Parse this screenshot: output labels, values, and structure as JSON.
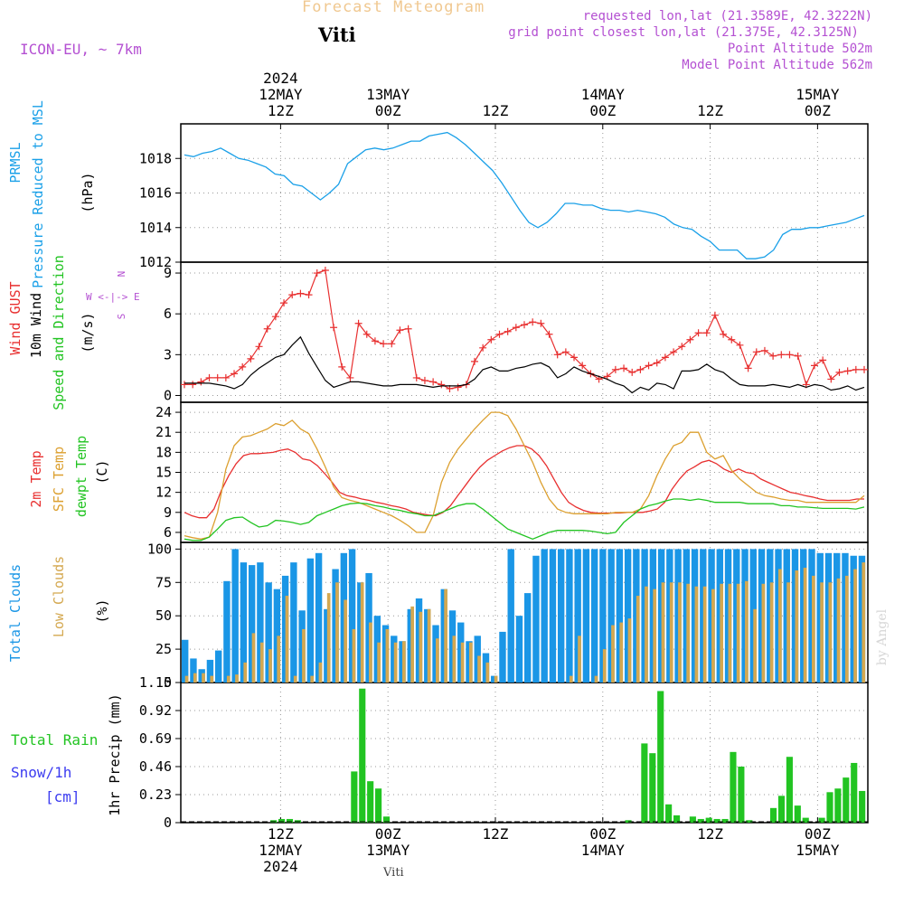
{
  "header": {
    "title": "Forecast Meteogram",
    "location": "Viti",
    "model": "ICON-EU, ~ 7km",
    "requested": "requested lon,lat (21.3589E, 42.3222N)",
    "gridpoint": "grid point closest lon,lat (21.375E, 42.3125N)",
    "point_alt": "Point Altitude 502m",
    "model_alt": "Model Point Altitude 562m",
    "footer": "Viti",
    "watermark": "by Angel"
  },
  "colors": {
    "pressure": "#1aa0e8",
    "gust": "#e83030",
    "wind": "#000000",
    "temp2m": "#e83030",
    "sfctemp": "#dca030",
    "dewpt": "#22c422",
    "total_clouds": "#1a96e6",
    "low_clouds": "#d4a850",
    "precip": "#22c422",
    "label_purple": "#b450d2",
    "label_blue": "#3c3cf0"
  },
  "time_axis": {
    "top_ticks": [
      {
        "h": 12,
        "lines": [
          "2024",
          "12MAY",
          "12Z"
        ]
      },
      {
        "h": 24,
        "lines": [
          "13MAY",
          "00Z"
        ]
      },
      {
        "h": 36,
        "lines": [
          "12Z"
        ]
      },
      {
        "h": 48,
        "lines": [
          "14MAY",
          "00Z"
        ]
      },
      {
        "h": 60,
        "lines": [
          "12Z"
        ]
      },
      {
        "h": 72,
        "lines": [
          "15MAY",
          "00Z"
        ]
      }
    ],
    "bottom_ticks": [
      {
        "h": 12,
        "lines": [
          "12Z",
          "12MAY",
          "2024"
        ]
      },
      {
        "h": 24,
        "lines": [
          "00Z",
          "13MAY"
        ]
      },
      {
        "h": 36,
        "lines": [
          "12Z"
        ]
      },
      {
        "h": 48,
        "lines": [
          "00Z",
          "14MAY"
        ]
      },
      {
        "h": 60,
        "lines": [
          "12Z"
        ]
      },
      {
        "h": 72,
        "lines": [
          "00Z",
          "15MAY"
        ]
      }
    ]
  },
  "panels": {
    "pressure": {
      "labels": [
        "PRMSL",
        "Pressure Reduced to MSL"
      ],
      "unit": "(hPa)"
    },
    "wind": {
      "labels": [
        "Wind GUST",
        "10m Wind",
        "Speed and Direction"
      ],
      "unit": "(m/s)",
      "compass": [
        "N",
        "S",
        "W <-|-> E"
      ]
    },
    "temp": {
      "labels": [
        "2m Temp",
        "SFC Temp",
        "dewpt Temp"
      ],
      "unit": "(C)"
    },
    "clouds": {
      "labels": [
        "Total Clouds",
        "Low Clouds"
      ],
      "unit": "(%)"
    },
    "precip": {
      "labels": [
        "Total Rain",
        "Snow/1h",
        "[cm]"
      ],
      "unit": "1hr Precip (mm)"
    }
  },
  "chart_data": [
    {
      "type": "line",
      "title": "PRMSL Pressure Reduced to MSL",
      "ylabel": "(hPa)",
      "ylim": [
        1012,
        1020
      ],
      "yticks": [
        1012,
        1014,
        1016,
        1018
      ],
      "grid": true,
      "series": [
        {
          "name": "PRMSL",
          "values": [
            1018.2,
            1018.1,
            1018.3,
            1018.4,
            1018.6,
            1018.3,
            1018.0,
            1017.9,
            1017.7,
            1017.5,
            1017.1,
            1017.0,
            1016.5,
            1016.4,
            1016.0,
            1015.6,
            1016.0,
            1016.5,
            1017.7,
            1018.1,
            1018.5,
            1018.6,
            1018.5,
            1018.6,
            1018.8,
            1019.0,
            1019.0,
            1019.3,
            1019.4,
            1019.5,
            1019.2,
            1018.8,
            1018.3,
            1017.8,
            1017.3,
            1016.6,
            1015.8,
            1015.0,
            1014.3,
            1014.0,
            1014.3,
            1014.8,
            1015.4,
            1015.4,
            1015.3,
            1015.3,
            1015.1,
            1015.0,
            1015.0,
            1014.9,
            1015.0,
            1014.9,
            1014.8,
            1014.6,
            1014.2,
            1014.0,
            1013.9,
            1013.5,
            1013.2,
            1012.7,
            1012.7,
            1012.7,
            1012.2,
            1012.2,
            1012.3,
            1012.7,
            1013.6,
            1013.9,
            1013.9,
            1014.0,
            1014.0,
            1014.1,
            1014.2,
            1014.3,
            1014.5,
            1014.7
          ]
        }
      ]
    },
    {
      "type": "line",
      "title": "Wind GUST / 10m Wind Speed and Direction",
      "ylabel": "(m/s)",
      "ylim": [
        -0.5,
        9.8
      ],
      "yticks": [
        0,
        3,
        6,
        9
      ],
      "grid": true,
      "series": [
        {
          "name": "Wind GUST",
          "values": [
            0.8,
            0.8,
            1.0,
            1.3,
            1.3,
            1.3,
            1.6,
            2.1,
            2.7,
            3.6,
            4.9,
            5.8,
            6.8,
            7.4,
            7.5,
            7.4,
            9.0,
            9.2,
            5.0,
            2.1,
            1.3,
            5.3,
            4.5,
            4.0,
            3.8,
            3.8,
            4.8,
            4.9,
            1.3,
            1.1,
            1.0,
            0.8,
            0.5,
            0.6,
            0.8,
            2.5,
            3.5,
            4.1,
            4.5,
            4.7,
            5.0,
            5.2,
            5.4,
            5.3,
            4.5,
            3.0,
            3.2,
            2.8,
            2.2,
            1.6,
            1.2,
            1.4,
            1.9,
            2.0,
            1.7,
            1.9,
            2.2,
            2.4,
            2.8,
            3.2,
            3.6,
            4.1,
            4.6,
            4.6,
            5.9,
            4.5,
            4.1,
            3.7,
            2.0,
            3.2,
            3.3,
            2.9,
            3.0,
            3.0,
            2.9,
            0.8,
            2.2,
            2.6,
            1.2,
            1.7,
            1.8,
            1.9,
            1.9
          ]
        },
        {
          "name": "10m Wind",
          "values": [
            0.9,
            0.9,
            0.9,
            0.9,
            0.8,
            0.7,
            0.5,
            0.8,
            1.5,
            2.0,
            2.4,
            2.8,
            3.0,
            3.7,
            4.3,
            3.1,
            2.1,
            1.1,
            0.6,
            0.8,
            1.0,
            1.0,
            0.9,
            0.8,
            0.7,
            0.7,
            0.8,
            0.8,
            0.8,
            0.7,
            0.6,
            0.7,
            0.7,
            0.7,
            0.8,
            1.2,
            1.9,
            2.1,
            1.8,
            1.8,
            2.0,
            2.1,
            2.3,
            2.4,
            2.1,
            1.3,
            1.6,
            2.1,
            1.8,
            1.6,
            1.4,
            1.2,
            0.9,
            0.7,
            0.2,
            0.6,
            0.4,
            0.9,
            0.8,
            0.5,
            1.8,
            1.8,
            1.9,
            2.3,
            1.9,
            1.7,
            1.2,
            0.8,
            0.7,
            0.7,
            0.7,
            0.8,
            0.7,
            0.6,
            0.8,
            0.6,
            0.8,
            0.7,
            0.4,
            0.5,
            0.7,
            0.4,
            0.6
          ]
        }
      ]
    },
    {
      "type": "line",
      "title": "2m Temp / SFC Temp / dewpt Temp",
      "ylabel": "(C)",
      "ylim": [
        4.5,
        25.5
      ],
      "yticks": [
        6,
        9,
        12,
        15,
        18,
        21,
        24
      ],
      "grid": true,
      "series": [
        {
          "name": "2m Temp",
          "values": [
            9.0,
            8.5,
            8.2,
            8.2,
            9.5,
            12.3,
            14.5,
            16.3,
            17.5,
            17.8,
            17.8,
            17.9,
            18.0,
            18.3,
            18.5,
            18.0,
            17.0,
            16.8,
            16.0,
            14.8,
            13.5,
            12.0,
            11.5,
            11.3,
            11.0,
            10.8,
            10.5,
            10.3,
            10.0,
            9.8,
            9.5,
            9.0,
            8.8,
            8.6,
            8.5,
            9.0,
            10.0,
            11.5,
            13.0,
            14.5,
            15.8,
            16.8,
            17.5,
            18.2,
            18.7,
            19.0,
            19.0,
            18.5,
            17.5,
            16.0,
            14.0,
            12.0,
            10.5,
            9.8,
            9.3,
            9.0,
            8.9,
            8.9,
            8.9,
            8.9,
            9.0,
            9.0,
            9.0,
            9.2,
            9.5,
            10.5,
            12.5,
            14.0,
            15.2,
            15.8,
            16.5,
            16.8,
            16.3,
            15.5,
            15.0,
            15.5,
            15.0,
            14.8,
            14.0,
            13.5,
            13.0,
            12.5,
            12.0,
            11.8,
            11.5,
            11.3,
            11.0,
            10.8,
            10.8,
            10.8,
            10.8,
            11.0,
            11.0
          ]
        },
        {
          "name": "SFC Temp",
          "values": [
            5.5,
            5.2,
            5.0,
            5.3,
            9.0,
            15.5,
            19.0,
            20.3,
            20.5,
            21.0,
            21.5,
            22.3,
            22.0,
            22.8,
            21.5,
            20.8,
            18.5,
            15.8,
            12.8,
            11.2,
            10.8,
            10.5,
            10.0,
            9.5,
            9.0,
            8.5,
            7.8,
            7.0,
            6.0,
            6.0,
            8.5,
            13.5,
            16.5,
            18.5,
            20.0,
            21.5,
            22.8,
            24.0,
            24.0,
            23.5,
            21.5,
            19.0,
            16.5,
            13.5,
            11.0,
            9.5,
            9.0,
            8.8,
            8.8,
            8.8,
            8.8,
            8.8,
            9.0,
            9.0,
            9.0,
            9.5,
            11.5,
            14.5,
            17.0,
            19.0,
            19.5,
            21.0,
            21.0,
            18.0,
            17.0,
            17.5,
            15.3,
            14.0,
            13.0,
            12.0,
            11.5,
            11.3,
            11.0,
            10.8,
            10.8,
            10.5,
            10.5,
            10.5,
            10.5,
            10.5,
            10.5,
            10.5,
            11.5
          ]
        },
        {
          "name": "dewpt Temp",
          "values": [
            5.0,
            4.8,
            4.8,
            5.3,
            6.5,
            7.8,
            8.2,
            8.3,
            7.5,
            6.8,
            7.0,
            7.8,
            7.7,
            7.5,
            7.2,
            7.5,
            8.5,
            9.0,
            9.5,
            10.0,
            10.3,
            10.4,
            10.3,
            10.0,
            9.8,
            9.5,
            9.3,
            9.0,
            8.8,
            8.5,
            8.5,
            9.0,
            9.5,
            10.0,
            10.3,
            10.3,
            9.5,
            8.5,
            7.5,
            6.5,
            6.0,
            5.5,
            5.0,
            5.5,
            6.0,
            6.3,
            6.3,
            6.3,
            6.3,
            6.2,
            6.0,
            5.8,
            6.0,
            7.5,
            8.5,
            9.5,
            10.0,
            10.3,
            10.7,
            11.0,
            11.0,
            10.8,
            11.0,
            10.8,
            10.5,
            10.5,
            10.5,
            10.5,
            10.3,
            10.3,
            10.3,
            10.3,
            10.0,
            10.0,
            9.8,
            9.8,
            9.7,
            9.6,
            9.6,
            9.6,
            9.6,
            9.5,
            9.8
          ]
        }
      ]
    },
    {
      "type": "bar",
      "title": "Total Clouds / Low Clouds",
      "ylabel": "(%)",
      "ylim": [
        0,
        105
      ],
      "yticks": [
        0,
        25,
        50,
        75,
        100
      ],
      "grid": true,
      "series": [
        {
          "name": "Total Clouds",
          "values": [
            32,
            18,
            10,
            17,
            24,
            76,
            100,
            90,
            88,
            90,
            75,
            70,
            80,
            90,
            54,
            93,
            97,
            55,
            85,
            97,
            100,
            75,
            82,
            50,
            43,
            35,
            31,
            55,
            63,
            55,
            43,
            70,
            54,
            45,
            31,
            35,
            22,
            5,
            38,
            100,
            50,
            67,
            95,
            100,
            100,
            100,
            100,
            100,
            100,
            100,
            100,
            100,
            100,
            100,
            100,
            100,
            100,
            100,
            100,
            100,
            100,
            100,
            100,
            100,
            100,
            100,
            100,
            100,
            100,
            100,
            100,
            100,
            100,
            100,
            100,
            100,
            97,
            97,
            97,
            97,
            95,
            95
          ]
        },
        {
          "name": "Low Clouds",
          "values": [
            5,
            7,
            7,
            5,
            0,
            5,
            6,
            15,
            37,
            30,
            25,
            35,
            65,
            5,
            40,
            5,
            15,
            67,
            75,
            62,
            40,
            75,
            45,
            30,
            40,
            30,
            31,
            57,
            53,
            55,
            33,
            70,
            35,
            30,
            30,
            20,
            15,
            5,
            0,
            0,
            0,
            0,
            0,
            0,
            0,
            0,
            5,
            35,
            0,
            5,
            25,
            43,
            45,
            48,
            65,
            72,
            70,
            75,
            75,
            75,
            74,
            72,
            72,
            70,
            74,
            74,
            74,
            76,
            55,
            74,
            75,
            85,
            75,
            84,
            86,
            80,
            75,
            75,
            78,
            80,
            85,
            90
          ]
        }
      ]
    },
    {
      "type": "bar",
      "title": "1hr Precip",
      "ylabel": "1hr Precip (mm)",
      "ylim": [
        0,
        1.15
      ],
      "yticks": [
        0,
        0.23,
        0.46,
        0.69,
        0.92,
        1.15
      ],
      "grid": true,
      "series": [
        {
          "name": "Total Rain",
          "values": [
            0,
            0,
            0,
            0,
            0,
            0,
            0,
            0,
            0,
            0,
            0,
            0.02,
            0.03,
            0.03,
            0.02,
            0,
            0,
            0,
            0,
            0,
            0,
            0.42,
            1.1,
            0.34,
            0.28,
            0.05,
            0,
            0,
            0,
            0,
            0,
            0,
            0,
            0,
            0,
            0,
            0,
            0,
            0,
            0,
            0,
            0,
            0,
            0,
            0,
            0,
            0,
            0,
            0,
            0,
            0,
            0,
            0,
            0,
            0,
            0.02,
            0,
            0.65,
            0.57,
            1.08,
            0.15,
            0.06,
            0,
            0.05,
            0.03,
            0.04,
            0.03,
            0.03,
            0.58,
            0.46,
            0.02,
            0,
            0,
            0.12,
            0.22,
            0.54,
            0.14,
            0.04,
            0,
            0.04,
            0.25,
            0.28,
            0.37,
            0.49,
            0.26
          ]
        }
      ]
    }
  ]
}
